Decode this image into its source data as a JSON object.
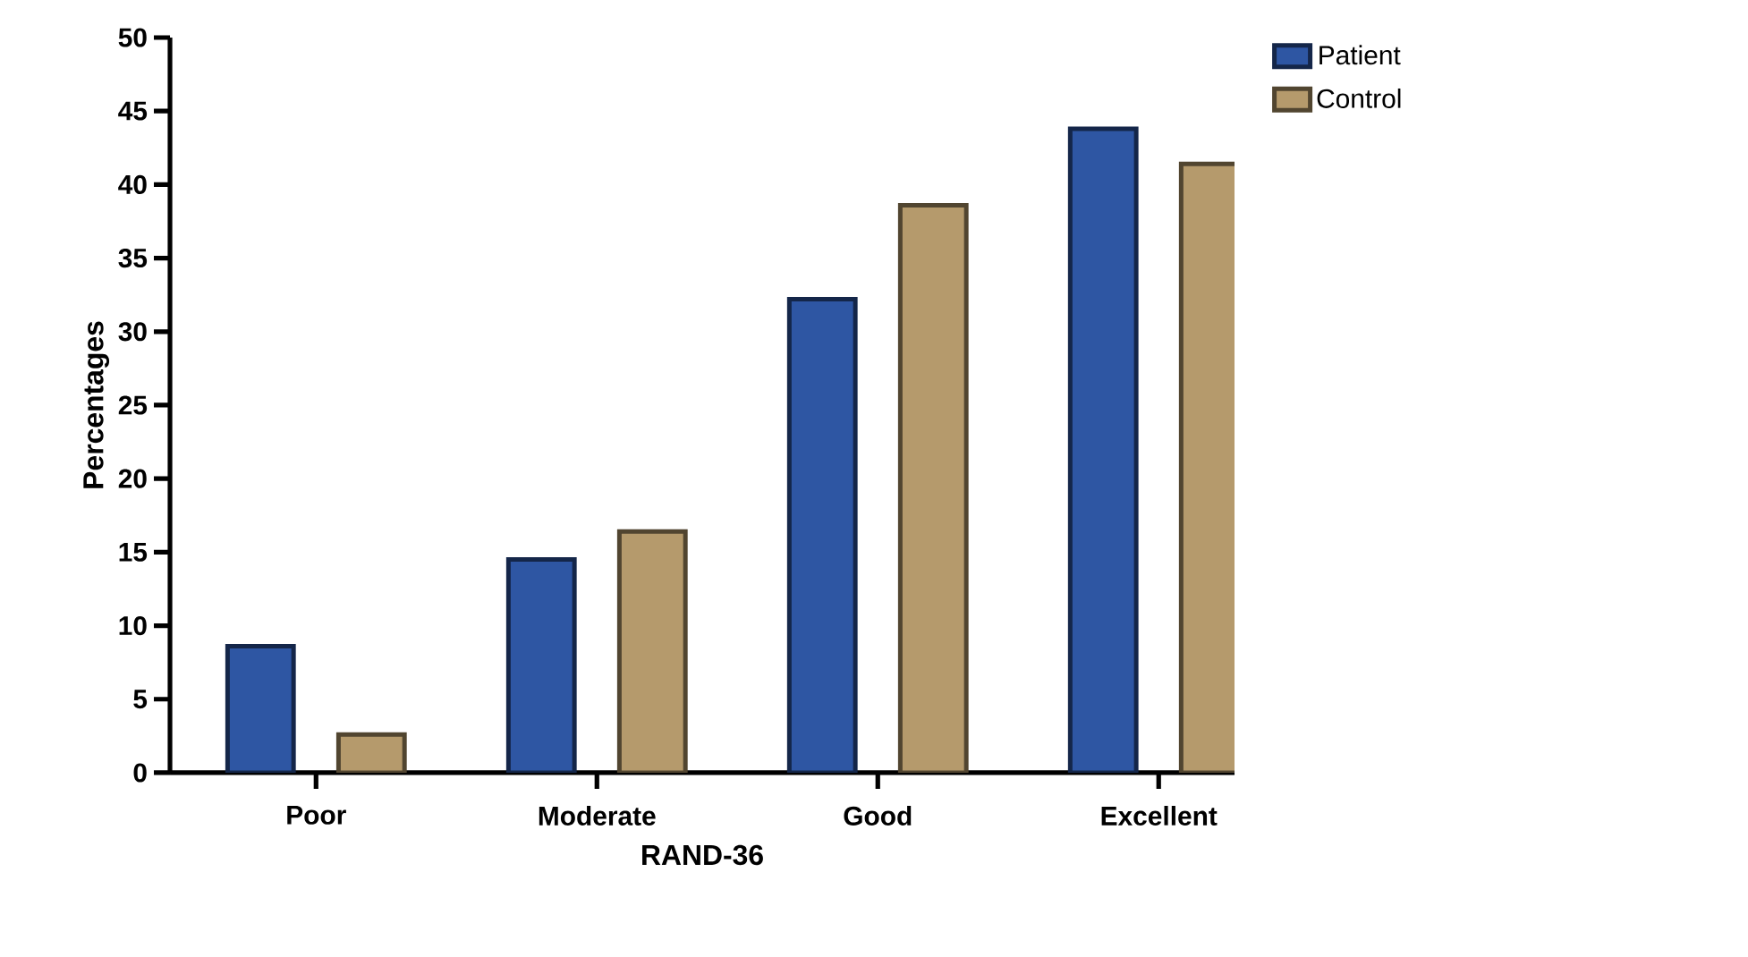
{
  "chart_data": {
    "type": "bar",
    "xlabel": "RAND-36",
    "ylabel": "Percentages",
    "categories": [
      "Poor",
      "Moderate",
      "Good",
      "Excellent"
    ],
    "series": [
      {
        "name": "Patient",
        "color": "#2e56a3",
        "values": [
          8.6,
          14.5,
          32.2,
          43.8
        ]
      },
      {
        "name": "Control",
        "color": "#b59a6c",
        "values": [
          2.6,
          16.4,
          38.6,
          41.4
        ]
      }
    ],
    "ylim": [
      0,
      50
    ],
    "yticks": [
      0,
      5,
      10,
      15,
      20,
      25,
      30,
      35,
      40,
      45,
      50
    ],
    "grid": false,
    "legend": "top right"
  }
}
